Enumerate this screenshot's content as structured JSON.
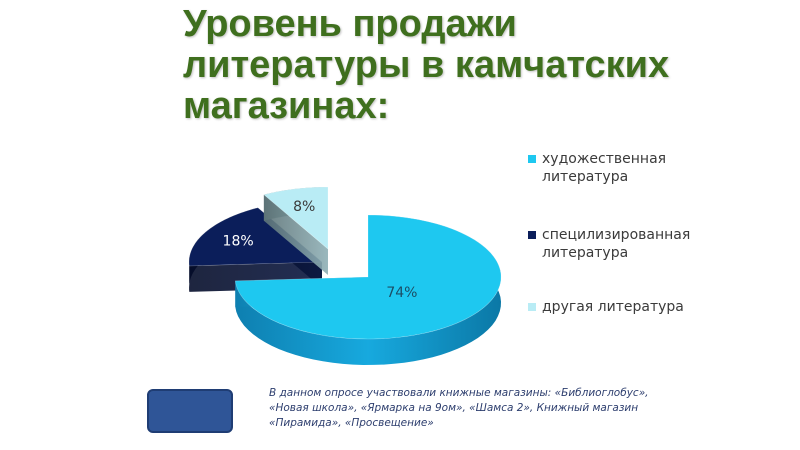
{
  "title": "Уровень продажи литературы в камчатских магазинах:",
  "chart_data": {
    "type": "pie",
    "style": "3d-exploded",
    "slices": [
      {
        "label": "художественная литература",
        "value": 74,
        "display": "74%",
        "color": "#1ec8f0"
      },
      {
        "label": "специлизированная литература",
        "value": 18,
        "display": "18%",
        "color": "#0b1e5a"
      },
      {
        "label": "другая литература",
        "value": 8,
        "display": "8%",
        "color": "#b9ecf5"
      }
    ],
    "legend_placement": "right"
  },
  "note": "В данном опросе участвовали книжные магазины: «Библиоглобус», «Новая школа», «Ярмарка на 9ом», «Шамса 2», Книжный магазин «Пирамида», «Просвещение»"
}
